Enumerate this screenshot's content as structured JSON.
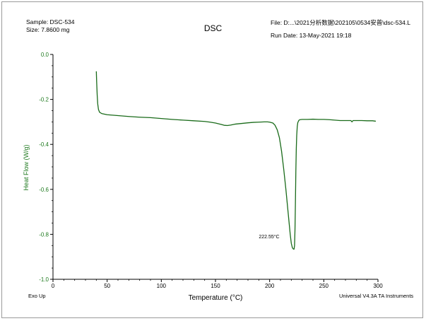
{
  "header": {
    "sample": "Sample: DSC-534",
    "size": "Size:  7.8600 mg",
    "file": "File: D:...\\2021分析数据\\202105\\0534安普\\dsc-534.L",
    "run_date": "Run Date: 13-May-2021 19:18"
  },
  "footer": {
    "exo_up": "Exo Up",
    "instrument": "Universal V4.3A TA Instruments"
  },
  "colors": {
    "curve": "#1a6b1a",
    "ylabel": "#1f7a1f",
    "axis": "#000000"
  },
  "chart_data": {
    "type": "line",
    "title": "DSC",
    "xlabel": "Temperature (°C)",
    "ylabel": "Heat Flow (W/g)",
    "xlim": [
      0,
      300
    ],
    "ylim": [
      -1.0,
      0.0
    ],
    "xticks": [
      0,
      50,
      100,
      150,
      200,
      250,
      300
    ],
    "yticks": [
      "0.0",
      "-0.2",
      "-0.4",
      "-0.6",
      "-0.8",
      "-1.0"
    ],
    "annotations": [
      {
        "text": "222.55°C",
        "x": 190,
        "y": -0.818
      }
    ],
    "series": [
      {
        "x": [
          40.0,
          40.3,
          40.8,
          41.3,
          42.0,
          43.0,
          45.0,
          50,
          60,
          70,
          80,
          90,
          100,
          110,
          120,
          130,
          140,
          145,
          150,
          155,
          158,
          161,
          164,
          168,
          172,
          176,
          180,
          185,
          190,
          195,
          198,
          200,
          203,
          205,
          207,
          209,
          211,
          213,
          215,
          217,
          218,
          219,
          220,
          221,
          222,
          222.55,
          223,
          223.4,
          223.8,
          224.2,
          224.6,
          225,
          225.5,
          226,
          227,
          228,
          230,
          235,
          240,
          245,
          250,
          255,
          260,
          265,
          270,
          275,
          276,
          277,
          278,
          280,
          285,
          290,
          295,
          298
        ],
        "values": [
          -0.075,
          -0.12,
          -0.18,
          -0.22,
          -0.245,
          -0.257,
          -0.263,
          -0.268,
          -0.272,
          -0.276,
          -0.279,
          -0.281,
          -0.285,
          -0.289,
          -0.292,
          -0.295,
          -0.298,
          -0.301,
          -0.305,
          -0.311,
          -0.315,
          -0.316,
          -0.314,
          -0.31,
          -0.308,
          -0.306,
          -0.304,
          -0.302,
          -0.301,
          -0.3,
          -0.3,
          -0.301,
          -0.305,
          -0.315,
          -0.335,
          -0.37,
          -0.43,
          -0.51,
          -0.6,
          -0.7,
          -0.75,
          -0.8,
          -0.84,
          -0.86,
          -0.866,
          -0.866,
          -0.85,
          -0.78,
          -0.66,
          -0.52,
          -0.42,
          -0.36,
          -0.32,
          -0.303,
          -0.293,
          -0.29,
          -0.289,
          -0.289,
          -0.288,
          -0.289,
          -0.289,
          -0.29,
          -0.292,
          -0.294,
          -0.294,
          -0.294,
          -0.3,
          -0.294,
          -0.294,
          -0.294,
          -0.294,
          -0.295,
          -0.295,
          -0.297
        ]
      }
    ]
  }
}
